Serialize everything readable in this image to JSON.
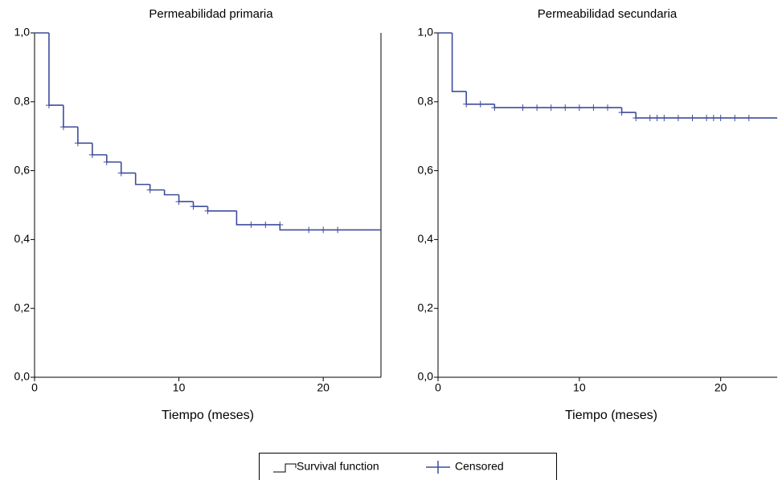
{
  "chart_data": [
    {
      "type": "step",
      "title": "Permeabilidad primaria",
      "x_label": "Tiempo (meses)",
      "color": "#3f4c9c",
      "x": [
        0,
        1,
        2,
        3,
        4,
        5,
        6,
        7,
        8,
        9,
        10,
        11,
        12,
        14,
        17
      ],
      "values": [
        1.0,
        0.79,
        0.727,
        0.68,
        0.646,
        0.625,
        0.593,
        0.56,
        0.544,
        0.53,
        0.51,
        0.496,
        0.483,
        0.443,
        0.428
      ],
      "censored_x": [
        1,
        2,
        3,
        4,
        5,
        6,
        8,
        10,
        11,
        12,
        15,
        16,
        17,
        19,
        20,
        21
      ],
      "censored_values": [
        0.79,
        0.727,
        0.68,
        0.646,
        0.625,
        0.593,
        0.544,
        0.51,
        0.496,
        0.483,
        0.443,
        0.443,
        0.443,
        0.428,
        0.428,
        0.428
      ],
      "xlim": [
        0,
        24
      ],
      "xticks": [
        0,
        10,
        20
      ],
      "ylim": [
        0,
        1
      ],
      "yticks": [
        {
          "value": 0,
          "label": "0,0"
        },
        {
          "value": 0.2,
          "label": "0,2"
        },
        {
          "value": 0.4,
          "label": "0,4"
        },
        {
          "value": 0.6,
          "label": "0,6"
        },
        {
          "value": 0.8,
          "label": "0,8"
        },
        {
          "value": 1,
          "label": "1,0"
        }
      ]
    },
    {
      "type": "step",
      "title": "Permeabilidad secundaria",
      "x_label": "Tiempo (meses)",
      "color": "#3f4c9c",
      "x": [
        0,
        1,
        2,
        4,
        13,
        14
      ],
      "values": [
        1.0,
        0.83,
        0.793,
        0.783,
        0.769,
        0.753
      ],
      "censored_x": [
        2,
        3,
        4,
        6,
        7,
        8,
        9,
        10,
        11,
        12,
        13,
        14,
        15,
        15.5,
        16,
        17,
        18,
        19,
        19.5,
        20,
        21,
        22
      ],
      "censored_values": [
        0.793,
        0.793,
        0.783,
        0.783,
        0.783,
        0.783,
        0.783,
        0.783,
        0.783,
        0.783,
        0.769,
        0.753,
        0.753,
        0.753,
        0.753,
        0.753,
        0.753,
        0.753,
        0.753,
        0.753,
        0.753,
        0.753
      ],
      "xlim": [
        0,
        24
      ],
      "xticks": [
        0,
        10,
        20
      ],
      "ylim": [
        0,
        1
      ],
      "yticks": [
        {
          "value": 0,
          "label": "0,0"
        },
        {
          "value": 0.2,
          "label": "0,2"
        },
        {
          "value": 0.4,
          "label": "0,4"
        },
        {
          "value": 0.6,
          "label": "0,6"
        },
        {
          "value": 0.8,
          "label": "0,8"
        },
        {
          "value": 1,
          "label": "1,0"
        }
      ]
    }
  ],
  "legend": [
    "Survival function",
    "Censored"
  ]
}
